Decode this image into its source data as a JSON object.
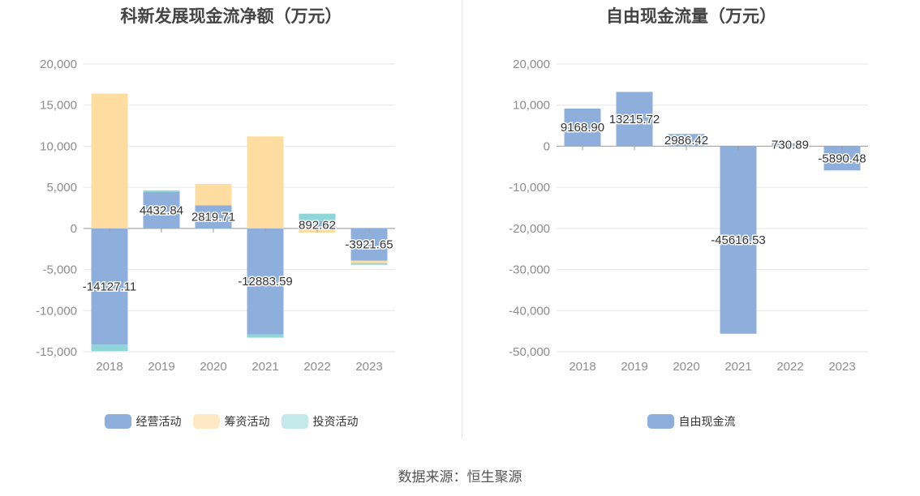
{
  "source_label": "数据来源：恒生聚源",
  "chart_data": [
    {
      "type": "bar",
      "stacked": true,
      "title": "科新发展现金流净额（万元）",
      "categories": [
        "2018",
        "2019",
        "2020",
        "2021",
        "2022",
        "2023"
      ],
      "ylim": [
        -15000,
        20000
      ],
      "yticks": [
        20000,
        15000,
        10000,
        5000,
        0,
        -5000,
        -10000,
        -15000
      ],
      "ytick_labels": [
        "20,000",
        "15,000",
        "10,000",
        "5,000",
        "0",
        "-5,000",
        "-10,000",
        "-15,000"
      ],
      "grid": true,
      "legend_position": "bottom",
      "series": [
        {
          "name": "经营活动",
          "color": "#8eafdc",
          "values": [
            -14127.11,
            4432.84,
            2819.71,
            -12883.59,
            892.62,
            -3921.65
          ]
        },
        {
          "name": "筹资活动",
          "color": "#ffdca0",
          "values": [
            16400,
            0,
            2600,
            11200,
            -500,
            -300
          ]
        },
        {
          "name": "投资活动",
          "color": "#8ed6d8",
          "values": [
            -800,
            200,
            -50,
            -400,
            900,
            -200
          ]
        }
      ],
      "data_labels": [
        "-14127.11",
        "4432.84",
        "2819.71",
        "-12883.59",
        "892.62",
        "-3921.65"
      ],
      "legend_swatch_colors": [
        "#8eafdc",
        "#ffe8c4",
        "#c3e9ea"
      ]
    },
    {
      "type": "bar",
      "title": "自由现金流量（万元）",
      "categories": [
        "2018",
        "2019",
        "2020",
        "2021",
        "2022",
        "2023"
      ],
      "ylim": [
        -50000,
        20000
      ],
      "yticks": [
        20000,
        10000,
        0,
        -10000,
        -20000,
        -30000,
        -40000,
        -50000
      ],
      "ytick_labels": [
        "20,000",
        "10,000",
        "0",
        "-10,000",
        "-20,000",
        "-30,000",
        "-40,000",
        "-50,000"
      ],
      "grid": true,
      "legend_position": "bottom",
      "series": [
        {
          "name": "自由现金流",
          "color": "#8eafdc",
          "values": [
            9168.9,
            13215.72,
            2986.42,
            -45616.53,
            730.89,
            -5890.48
          ]
        }
      ],
      "data_labels": [
        "9168.90",
        "13215.72",
        "2986.42",
        "-45616.53",
        "730.89",
        "-5890.48"
      ],
      "legend_swatch_colors": [
        "#8eafdc"
      ]
    }
  ]
}
